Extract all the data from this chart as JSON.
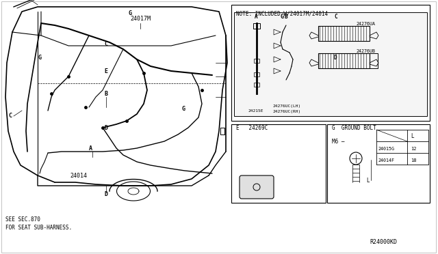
{
  "bg_color": "#ffffff",
  "line_color": "#000000",
  "note_text": "NOTE: INCLUDED W/24017M/24014",
  "ref_code": "R24000KD",
  "bottom_note": "SEE SEC.870\nFOR SEAT SUB-HARNESS.",
  "ground_bolt": {
    "title": "G  GROUND BOLT",
    "m6_label": "M6",
    "rows": [
      {
        "part": "24015G",
        "l": "12"
      },
      {
        "part": "24014F",
        "l": "18"
      }
    ]
  },
  "inset_parts": {
    "part_24215E": "24215E",
    "part_24276UCLH": "24276UC(LH)",
    "part_24276UCRH": "24276UC(RH)",
    "part_24276UA": "24276UA",
    "part_24276UB": "24276UB"
  },
  "bottom_inset": {
    "label_E": "E",
    "part_24269C": "24269C"
  }
}
